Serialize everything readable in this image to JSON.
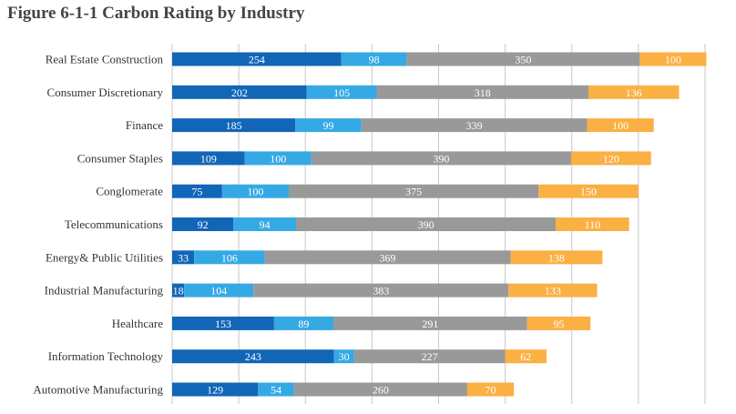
{
  "colors": {
    "dark_blue": "#1266b8",
    "light_blue": "#35a9e4",
    "gray": "#999999",
    "orange": "#fbb044",
    "grid": "#c8c8c8",
    "label_text": "#ffffff"
  },
  "chart_data": {
    "type": "bar",
    "orientation": "horizontal",
    "stacked": true,
    "title": "Figure 6-1-1 Carbon Rating by Industry",
    "categories": [
      "Real Estate Construction",
      "Consumer Discretionary",
      "Finance",
      "Consumer Staples",
      "Conglomerate",
      "Telecommunications",
      "Energy& Public Utilities",
      "Industrial Manufacturing",
      "Healthcare",
      "Information Technology",
      "Automotive Manufacturing"
    ],
    "series": [
      {
        "color": "#1266b8",
        "values": [
          254,
          202,
          185,
          109,
          75,
          92,
          33,
          18,
          153,
          243,
          129
        ]
      },
      {
        "color": "#35a9e4",
        "values": [
          98,
          105,
          99,
          100,
          100,
          94,
          106,
          104,
          89,
          30,
          54
        ]
      },
      {
        "color": "#999999",
        "values": [
          350,
          318,
          339,
          390,
          375,
          390,
          369,
          383,
          291,
          227,
          260
        ]
      },
      {
        "color": "#fbb044",
        "values": [
          100,
          136,
          100,
          120,
          150,
          110,
          138,
          133,
          95,
          62,
          70
        ]
      }
    ],
    "xlim": [
      0,
      800
    ],
    "grid": true,
    "data_labels": true
  }
}
